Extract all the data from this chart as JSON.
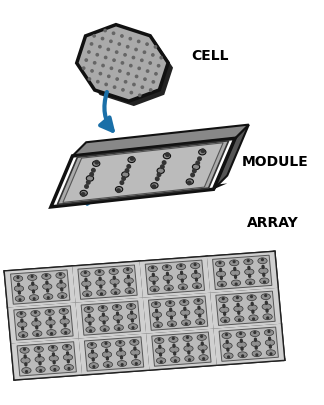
{
  "bg_color": "#ffffff",
  "cell_color": "#aaaaaa",
  "cell_edge_color": "#111111",
  "cell_shadow_color": "#333333",
  "arrow_color": "#1a6fa8",
  "module_frame_outer": "#111111",
  "module_frame_inner": "#888888",
  "module_bg": "#cccccc",
  "module_depth_top": "#aaaaaa",
  "module_depth_bottom": "#333333",
  "module_depth_right": "#555555",
  "cell_fill": "#888888",
  "cell_outline": "#222222",
  "array_outline": "#222222",
  "array_bg": "#dddddd",
  "sub_bg": "#c8c8c8",
  "label_cell": "CELL",
  "label_module": "MODULE",
  "label_array": "ARRAY",
  "label_fontsize": 10,
  "label_fontweight": "bold"
}
